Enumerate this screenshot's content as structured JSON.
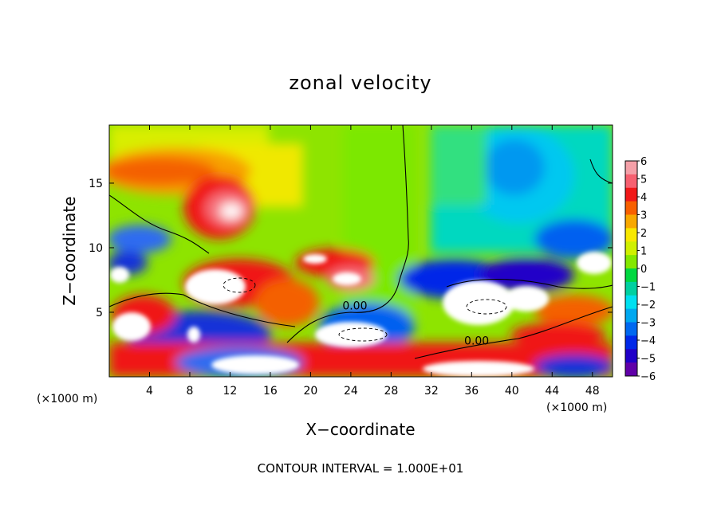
{
  "chart_data": {
    "type": "heatmap",
    "title": "zonal velocity",
    "xlabel": "X−coordinate",
    "ylabel": "Z−coordinate",
    "x_unit_left": "(×1000 m)",
    "x_unit_right": "(×1000 m)",
    "footer": "CONTOUR INTERVAL = 1.000E+01",
    "xlim": [
      0,
      50
    ],
    "ylim": [
      0,
      19.5
    ],
    "x_ticks": [
      4,
      8,
      12,
      16,
      20,
      24,
      28,
      32,
      36,
      40,
      44,
      48
    ],
    "y_ticks": [
      5,
      10,
      15
    ],
    "contour_labels": [
      {
        "text": "0.00",
        "x": 24.4,
        "y": 5.2
      },
      {
        "text": "0.00",
        "x": 36.5,
        "y": 2.5
      }
    ],
    "colorbar": {
      "labels": [
        "6",
        "5",
        "4",
        "3",
        "2",
        "1",
        "0",
        "−1",
        "−2",
        "−3",
        "−4",
        "−5",
        "−6"
      ],
      "colors": [
        "#f4a0a8",
        "#f66070",
        "#f01818",
        "#f86000",
        "#f8a800",
        "#f8e800",
        "#d0f000",
        "#84e800",
        "#00d840",
        "#00d0a0",
        "#00e0f0",
        "#00a8f0",
        "#0068f0",
        "#0028e8",
        "#2000c8",
        "#6000a8"
      ]
    }
  }
}
